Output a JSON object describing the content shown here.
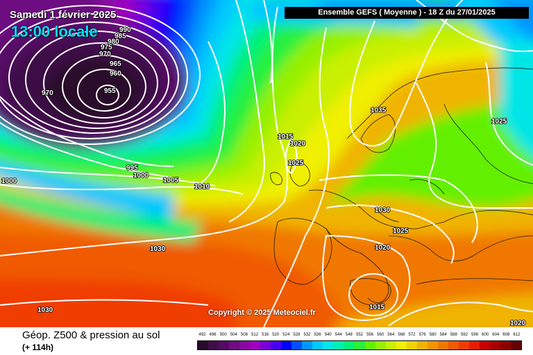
{
  "header": {
    "date_text": "Samedi 1 février 2025",
    "time_text": "13:00 locale",
    "model_text": "Ensemble GEFS  ( Moyenne )  -  18 Z du 27/01/2025"
  },
  "copyright": "Copyright © 2025 Meteociel.fr",
  "footer": {
    "title": "Géop. Z500 & pression au sol",
    "forecast_hour": "(+ 114h)"
  },
  "legend": {
    "labels": [
      "492",
      "496",
      "500",
      "504",
      "508",
      "512",
      "516",
      "520",
      "524",
      "528",
      "532",
      "536",
      "540",
      "544",
      "548",
      "552",
      "556",
      "560",
      "564",
      "568",
      "572",
      "576",
      "580",
      "584",
      "588",
      "592",
      "596",
      "600",
      "604",
      "608",
      "612"
    ],
    "colors": [
      "#2a0a2a",
      "#3e0e46",
      "#560a66",
      "#6e0c82",
      "#870aa0",
      "#a000c0",
      "#7800d8",
      "#4a00f0",
      "#0000ff",
      "#0050ff",
      "#0096ff",
      "#00c8ff",
      "#00e6e6",
      "#00f0b4",
      "#00f078",
      "#28f03c",
      "#64f000",
      "#96f000",
      "#c8f000",
      "#f0f000",
      "#f0d200",
      "#f0b400",
      "#f09600",
      "#f07800",
      "#f05a00",
      "#f03c00",
      "#e61e00",
      "#c80000",
      "#aa0000",
      "#8c0000",
      "#640000"
    ]
  },
  "pressure_labels": [
    {
      "text": "990"
    },
    {
      "text": "985"
    },
    {
      "text": "980"
    },
    {
      "text": "975"
    },
    {
      "text": "970"
    },
    {
      "text": "965"
    },
    {
      "text": "960"
    },
    {
      "text": "955"
    },
    {
      "text": "970"
    },
    {
      "text": "995"
    },
    {
      "text": "1000"
    },
    {
      "text": "1000"
    },
    {
      "text": "1005"
    },
    {
      "text": "1010"
    },
    {
      "text": "1015"
    },
    {
      "text": "1020"
    },
    {
      "text": "1025"
    },
    {
      "text": "1035"
    },
    {
      "text": "1025"
    },
    {
      "text": "1030"
    },
    {
      "text": "1030"
    },
    {
      "text": "1025"
    },
    {
      "text": "1020"
    },
    {
      "text": "1015"
    },
    {
      "text": "1030"
    },
    {
      "text": "1020"
    }
  ]
}
